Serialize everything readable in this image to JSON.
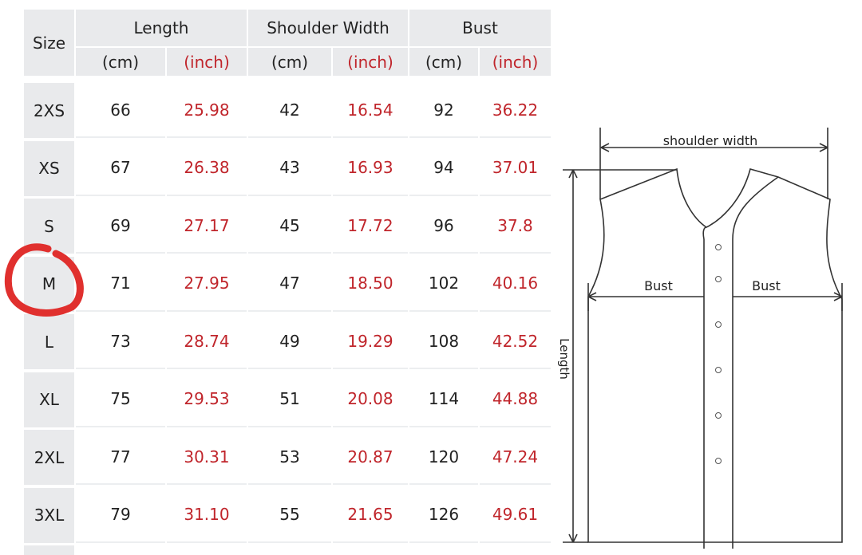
{
  "header": {
    "size": "Size",
    "groups": [
      "Length",
      "Shoulder Width",
      "Bust"
    ],
    "units": [
      "(cm)",
      "(inch)",
      "(cm)",
      "(inch)",
      "(cm)",
      "(inch)"
    ]
  },
  "table": {
    "rows": [
      [
        "2XS",
        "66",
        "25.98",
        "42",
        "16.54",
        "92",
        "36.22"
      ],
      [
        "XS",
        "67",
        "26.38",
        "43",
        "16.93",
        "94",
        "37.01"
      ],
      [
        "S",
        "69",
        "27.17",
        "45",
        "17.72",
        "96",
        "37.8"
      ],
      [
        "M",
        "71",
        "27.95",
        "47",
        "18.50",
        "102",
        "40.16"
      ],
      [
        "L",
        "73",
        "28.74",
        "49",
        "19.29",
        "108",
        "42.52"
      ],
      [
        "XL",
        "75",
        "29.53",
        "51",
        "20.08",
        "114",
        "44.88"
      ],
      [
        "2XL",
        "77",
        "30.31",
        "53",
        "20.87",
        "120",
        "47.24"
      ],
      [
        "3XL",
        "79",
        "31.10",
        "55",
        "21.65",
        "126",
        "49.61"
      ]
    ]
  },
  "diagram": {
    "shoulder_label": "shoulder width",
    "bust_left": "Bust",
    "bust_right": "Bust",
    "length_label": "Length"
  }
}
